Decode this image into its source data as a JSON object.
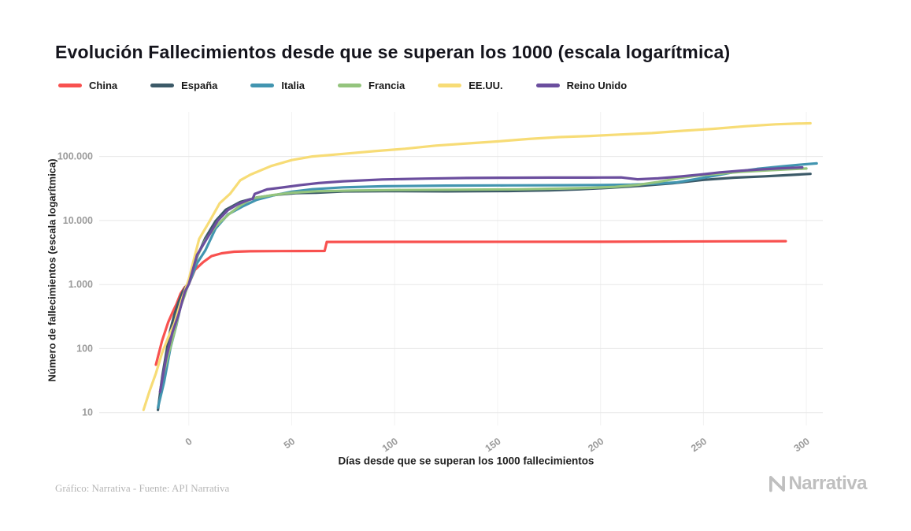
{
  "footer": {
    "credit": "Gráfico: Narrativa - Fuente: API Narrativa",
    "brand": "Narrativa"
  },
  "chart_data": {
    "type": "line",
    "title": "Evolución Fallecimientos desde que se superan los 1000 (escala logarítmica)",
    "xlabel": "Días desde que se superan los 1000 fallecimientos",
    "ylabel": "Número de fallecimientos (escala logarítmica)",
    "y_scale": "log",
    "grid": true,
    "legend_position": "top-left",
    "xlim": [
      -42,
      308
    ],
    "ylim": [
      6.3,
      420000
    ],
    "x_ticks": [
      0,
      50,
      100,
      150,
      200,
      250,
      300
    ],
    "y_ticks": [
      10,
      100,
      1000,
      10000,
      100000
    ],
    "y_tick_labels": [
      "10",
      "100",
      "1.000",
      "10.000",
      "100.000"
    ],
    "series": [
      {
        "name": "China",
        "color": "#f8514f",
        "points": [
          [
            -16,
            56
          ],
          [
            -13,
            132
          ],
          [
            -10,
            259
          ],
          [
            -8,
            362
          ],
          [
            -6,
            493
          ],
          [
            -4,
            722
          ],
          [
            -2,
            908
          ],
          [
            0,
            1016
          ],
          [
            3,
            1700
          ],
          [
            7,
            2240
          ],
          [
            11,
            2780
          ],
          [
            16,
            3080
          ],
          [
            22,
            3260
          ],
          [
            30,
            3310
          ],
          [
            45,
            3335
          ],
          [
            66,
            3350
          ],
          [
            67,
            4630
          ],
          [
            120,
            4640
          ],
          [
            200,
            4650
          ],
          [
            260,
            4730
          ],
          [
            290,
            4755
          ]
        ]
      },
      {
        "name": "España",
        "color": "#3c5a68",
        "points": [
          [
            -15,
            11
          ],
          [
            -13,
            35
          ],
          [
            -11,
            84
          ],
          [
            -9,
            195
          ],
          [
            -7,
            340
          ],
          [
            -5,
            530
          ],
          [
            -3,
            770
          ],
          [
            0,
            1100
          ],
          [
            4,
            2700
          ],
          [
            8,
            5300
          ],
          [
            13,
            9800
          ],
          [
            18,
            14800
          ],
          [
            25,
            19500
          ],
          [
            33,
            22900
          ],
          [
            42,
            25100
          ],
          [
            52,
            26800
          ],
          [
            62,
            27150
          ],
          [
            75,
            28450
          ],
          [
            95,
            28750
          ],
          [
            125,
            28500
          ],
          [
            155,
            28900
          ],
          [
            175,
            29500
          ],
          [
            190,
            30700
          ],
          [
            205,
            32500
          ],
          [
            220,
            34900
          ],
          [
            235,
            38100
          ],
          [
            250,
            43100
          ],
          [
            265,
            46700
          ],
          [
            280,
            49000
          ],
          [
            292,
            51500
          ],
          [
            302,
            53500
          ]
        ]
      },
      {
        "name": "Italia",
        "color": "#4295b0",
        "points": [
          [
            -15,
            12
          ],
          [
            -12,
            30
          ],
          [
            -9,
            100
          ],
          [
            -6,
            235
          ],
          [
            -3,
            630
          ],
          [
            0,
            1020
          ],
          [
            4,
            2160
          ],
          [
            8,
            3410
          ],
          [
            13,
            7500
          ],
          [
            19,
            12430
          ],
          [
            26,
            16520
          ],
          [
            33,
            21070
          ],
          [
            41,
            24650
          ],
          [
            50,
            28240
          ],
          [
            60,
            30800
          ],
          [
            75,
            32960
          ],
          [
            95,
            34300
          ],
          [
            125,
            35100
          ],
          [
            155,
            35400
          ],
          [
            180,
            35600
          ],
          [
            200,
            35900
          ],
          [
            215,
            36300
          ],
          [
            227,
            37700
          ],
          [
            237,
            39400
          ],
          [
            246,
            44100
          ],
          [
            256,
            50500
          ],
          [
            266,
            58000
          ],
          [
            276,
            64000
          ],
          [
            288,
            70000
          ],
          [
            298,
            75000
          ],
          [
            305,
            78000
          ]
        ]
      },
      {
        "name": "Francia",
        "color": "#94c47d",
        "points": [
          [
            -13,
            33
          ],
          [
            -10,
            80
          ],
          [
            -7,
            180
          ],
          [
            -4,
            450
          ],
          [
            -2,
            675
          ],
          [
            0,
            1100
          ],
          [
            4,
            2750
          ],
          [
            8,
            4900
          ],
          [
            13,
            8100
          ],
          [
            19,
            12200
          ],
          [
            25,
            17200
          ],
          [
            31,
            22250
          ],
          [
            40,
            24760
          ],
          [
            50,
            27100
          ],
          [
            62,
            28600
          ],
          [
            80,
            29400
          ],
          [
            100,
            29980
          ],
          [
            130,
            30300
          ],
          [
            160,
            30700
          ],
          [
            180,
            31500
          ],
          [
            195,
            32300
          ],
          [
            207,
            33500
          ],
          [
            218,
            36000
          ],
          [
            228,
            40100
          ],
          [
            238,
            46000
          ],
          [
            248,
            50700
          ],
          [
            258,
            54000
          ],
          [
            268,
            57700
          ],
          [
            280,
            60500
          ],
          [
            292,
            63200
          ],
          [
            300,
            64900
          ]
        ]
      },
      {
        "name": "EE.UU.",
        "color": "#f7dc76",
        "points": [
          [
            -22,
            11
          ],
          [
            -19,
            22
          ],
          [
            -16,
            41
          ],
          [
            -13,
            85
          ],
          [
            -10,
            150
          ],
          [
            -7,
            246
          ],
          [
            -4,
            517
          ],
          [
            0,
            1210
          ],
          [
            5,
            5150
          ],
          [
            10,
            9620
          ],
          [
            15,
            18600
          ],
          [
            20,
            26100
          ],
          [
            25,
            42500
          ],
          [
            30,
            52200
          ],
          [
            40,
            71000
          ],
          [
            50,
            88000
          ],
          [
            60,
            100000
          ],
          [
            75,
            110000
          ],
          [
            90,
            121000
          ],
          [
            105,
            132000
          ],
          [
            120,
            148000
          ],
          [
            135,
            160000
          ],
          [
            150,
            172000
          ],
          [
            165,
            188000
          ],
          [
            180,
            201000
          ],
          [
            195,
            209000
          ],
          [
            210,
            221000
          ],
          [
            225,
            232000
          ],
          [
            240,
            252000
          ],
          [
            255,
            271000
          ],
          [
            270,
            296000
          ],
          [
            285,
            318000
          ],
          [
            295,
            326000
          ],
          [
            302,
            330000
          ]
        ]
      },
      {
        "name": "Reino Unido",
        "color": "#6b4e9e",
        "points": [
          [
            -14,
            21
          ],
          [
            -11,
            71
          ],
          [
            -8,
            178
          ],
          [
            -5,
            336
          ],
          [
            -2,
            760
          ],
          [
            0,
            1020
          ],
          [
            4,
            2920
          ],
          [
            9,
            5370
          ],
          [
            14,
            9880
          ],
          [
            19,
            14580
          ],
          [
            24,
            18100
          ],
          [
            29,
            21090
          ],
          [
            31,
            21680
          ],
          [
            32,
            26100
          ],
          [
            38,
            30620
          ],
          [
            45,
            32690
          ],
          [
            55,
            36000
          ],
          [
            63,
            38380
          ],
          [
            75,
            41000
          ],
          [
            94,
            43730
          ],
          [
            115,
            45100
          ],
          [
            135,
            46200
          ],
          [
            155,
            46600
          ],
          [
            175,
            46800
          ],
          [
            195,
            46900
          ],
          [
            210,
            47100
          ],
          [
            218,
            44000
          ],
          [
            228,
            45500
          ],
          [
            238,
            48500
          ],
          [
            248,
            52000
          ],
          [
            258,
            56500
          ],
          [
            268,
            60000
          ],
          [
            278,
            63000
          ],
          [
            288,
            65500
          ],
          [
            298,
            67500
          ]
        ]
      }
    ]
  }
}
